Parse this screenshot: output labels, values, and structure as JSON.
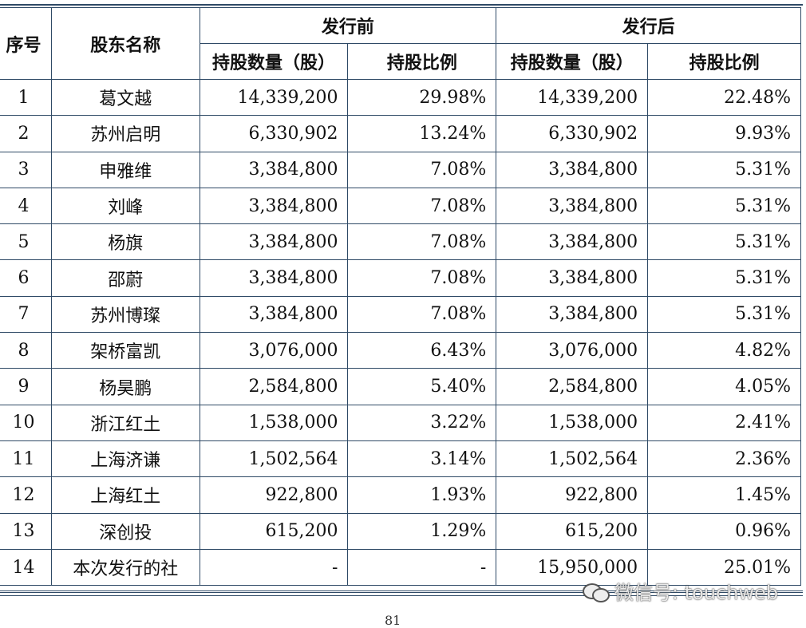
{
  "header": {
    "col_index": "序号",
    "col_name": "股东名称",
    "group_before": "发行前",
    "group_after": "发行后",
    "shares_label": "持股数量（股）",
    "ratio_label": "持股比例"
  },
  "rows": [
    {
      "no": "1",
      "name": "葛文越",
      "before_shares": "14,339,200",
      "before_ratio": "29.98%",
      "after_shares": "14,339,200",
      "after_ratio": "22.48%"
    },
    {
      "no": "2",
      "name": "苏州启明",
      "before_shares": "6,330,902",
      "before_ratio": "13.24%",
      "after_shares": "6,330,902",
      "after_ratio": "9.93%"
    },
    {
      "no": "3",
      "name": "申雅维",
      "before_shares": "3,384,800",
      "before_ratio": "7.08%",
      "after_shares": "3,384,800",
      "after_ratio": "5.31%"
    },
    {
      "no": "4",
      "name": "刘峰",
      "before_shares": "3,384,800",
      "before_ratio": "7.08%",
      "after_shares": "3,384,800",
      "after_ratio": "5.31%"
    },
    {
      "no": "5",
      "name": "杨旗",
      "before_shares": "3,384,800",
      "before_ratio": "7.08%",
      "after_shares": "3,384,800",
      "after_ratio": "5.31%"
    },
    {
      "no": "6",
      "name": "邵蔚",
      "before_shares": "3,384,800",
      "before_ratio": "7.08%",
      "after_shares": "3,384,800",
      "after_ratio": "5.31%"
    },
    {
      "no": "7",
      "name": "苏州博璨",
      "before_shares": "3,384,800",
      "before_ratio": "7.08%",
      "after_shares": "3,384,800",
      "after_ratio": "5.31%"
    },
    {
      "no": "8",
      "name": "架桥富凯",
      "before_shares": "3,076,000",
      "before_ratio": "6.43%",
      "after_shares": "3,076,000",
      "after_ratio": "4.82%"
    },
    {
      "no": "9",
      "name": "杨昊鹏",
      "before_shares": "2,584,800",
      "before_ratio": "5.40%",
      "after_shares": "2,584,800",
      "after_ratio": "4.05%"
    },
    {
      "no": "10",
      "name": "浙江红土",
      "before_shares": "1,538,000",
      "before_ratio": "3.22%",
      "after_shares": "1,538,000",
      "after_ratio": "2.41%"
    },
    {
      "no": "11",
      "name": "上海济谦",
      "before_shares": "1,502,564",
      "before_ratio": "3.14%",
      "after_shares": "1,502,564",
      "after_ratio": "2.36%"
    },
    {
      "no": "12",
      "name": "上海红土",
      "before_shares": "922,800",
      "before_ratio": "1.93%",
      "after_shares": "922,800",
      "after_ratio": "1.45%"
    },
    {
      "no": "13",
      "name": "深创投",
      "before_shares": "615,200",
      "before_ratio": "1.29%",
      "after_shares": "615,200",
      "after_ratio": "0.96%"
    },
    {
      "no": "14",
      "name": "本次发行的社",
      "before_shares": "-",
      "before_ratio": "-",
      "after_shares": "15,950,000",
      "after_ratio": "25.01%"
    }
  ],
  "watermark": "微信号: touchweb",
  "page_number": "81",
  "colors": {
    "border": "#2f4a66"
  }
}
